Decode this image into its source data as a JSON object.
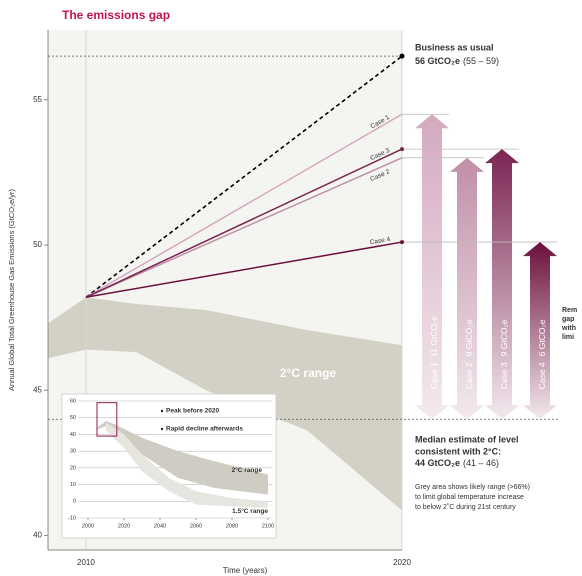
{
  "chart_data": [
    {
      "type": "line",
      "title": "The emissions gap",
      "ylabel": "Annual Global Total Greenhouse Gas Emissions (GtCO₂e/yr)",
      "xlabel": "Time (years)",
      "xlim": [
        2008.8,
        2020
      ],
      "xticks": [
        2010,
        2020
      ],
      "ylim": [
        39.5,
        57.4
      ],
      "yticks": [
        40,
        45,
        50,
        55
      ],
      "series": [
        {
          "name": "Business as usual",
          "color": "#000000",
          "dashed": true,
          "x": [
            2010,
            2020
          ],
          "values": [
            48.2,
            56.5
          ]
        },
        {
          "name": "Case 1",
          "color": "#d4a9bf",
          "x": [
            2010,
            2020
          ],
          "values": [
            48.2,
            54.5
          ]
        },
        {
          "name": "Case 2",
          "color": "#c08fa8",
          "x": [
            2010,
            2020
          ],
          "values": [
            48.2,
            53.0
          ]
        },
        {
          "name": "Case 3",
          "color": "#7b2452",
          "x": [
            2010,
            2020
          ],
          "values": [
            48.2,
            53.3
          ]
        },
        {
          "name": "Case 4",
          "color": "#6b0f3c",
          "x": [
            2010,
            2020
          ],
          "values": [
            48.2,
            50.1
          ]
        }
      ],
      "band": {
        "name": "2°C range",
        "color": "#d3d1c6",
        "x": [
          2008.8,
          2010,
          2011.6,
          2013.8,
          2017.0,
          2020
        ],
        "upper": [
          47.3,
          48.2,
          47.97,
          47.76,
          47.07,
          46.55
        ],
        "lower": [
          46.1,
          46.4,
          46.31,
          45.0,
          43.62,
          40.86
        ]
      },
      "reference_lines": [
        56.5,
        44
      ],
      "gap_labels": [
        "11 GtCO₂e",
        "9 GtCO₂e",
        "9 GtCO₂e",
        "6 GtCO₂e"
      ],
      "annotations": [
        "56 GtCO₂e",
        "(55 – 59)",
        "Median estimate of level",
        "consistent with 2°C:",
        "44 GtCO₂e",
        "(41 – 46)",
        "Grey area shows likely range (>66%)",
        "to limit global temperature increase",
        "to below 2˚C during 21st century",
        "Rem",
        "gap",
        "with",
        "limi"
      ]
    },
    {
      "type": "band",
      "xlim": [
        2000,
        2100
      ],
      "xticks": [
        2000,
        2020,
        2040,
        2060,
        2080,
        2100
      ],
      "ylim": [
        -10,
        60
      ],
      "yticks": [
        -10,
        0,
        10,
        20,
        30,
        40,
        50,
        60
      ],
      "grid": true,
      "notes": [
        "Peak before 2020",
        "Rapid decline afterwards"
      ],
      "highlight": {
        "x": [
          2005,
          2016
        ],
        "y": [
          39,
          59
        ]
      },
      "bands": [
        {
          "name": "2°C range",
          "color": "#cfcdc3",
          "x": [
            2005,
            2010,
            2015,
            2030,
            2050,
            2070,
            2100
          ],
          "upper": [
            44,
            48,
            46,
            38,
            30,
            24,
            16
          ],
          "lower": [
            43,
            45,
            42,
            28,
            14,
            8,
            4
          ]
        },
        {
          "name": "1.5°C range",
          "color": "#e6e5df",
          "x": [
            2010,
            2020,
            2030,
            2045,
            2060,
            2080,
            2100
          ],
          "upper": [
            47,
            40,
            28,
            14,
            6,
            2,
            0
          ],
          "lower": [
            42,
            32,
            18,
            6,
            -2,
            -3,
            -4
          ]
        }
      ]
    }
  ]
}
